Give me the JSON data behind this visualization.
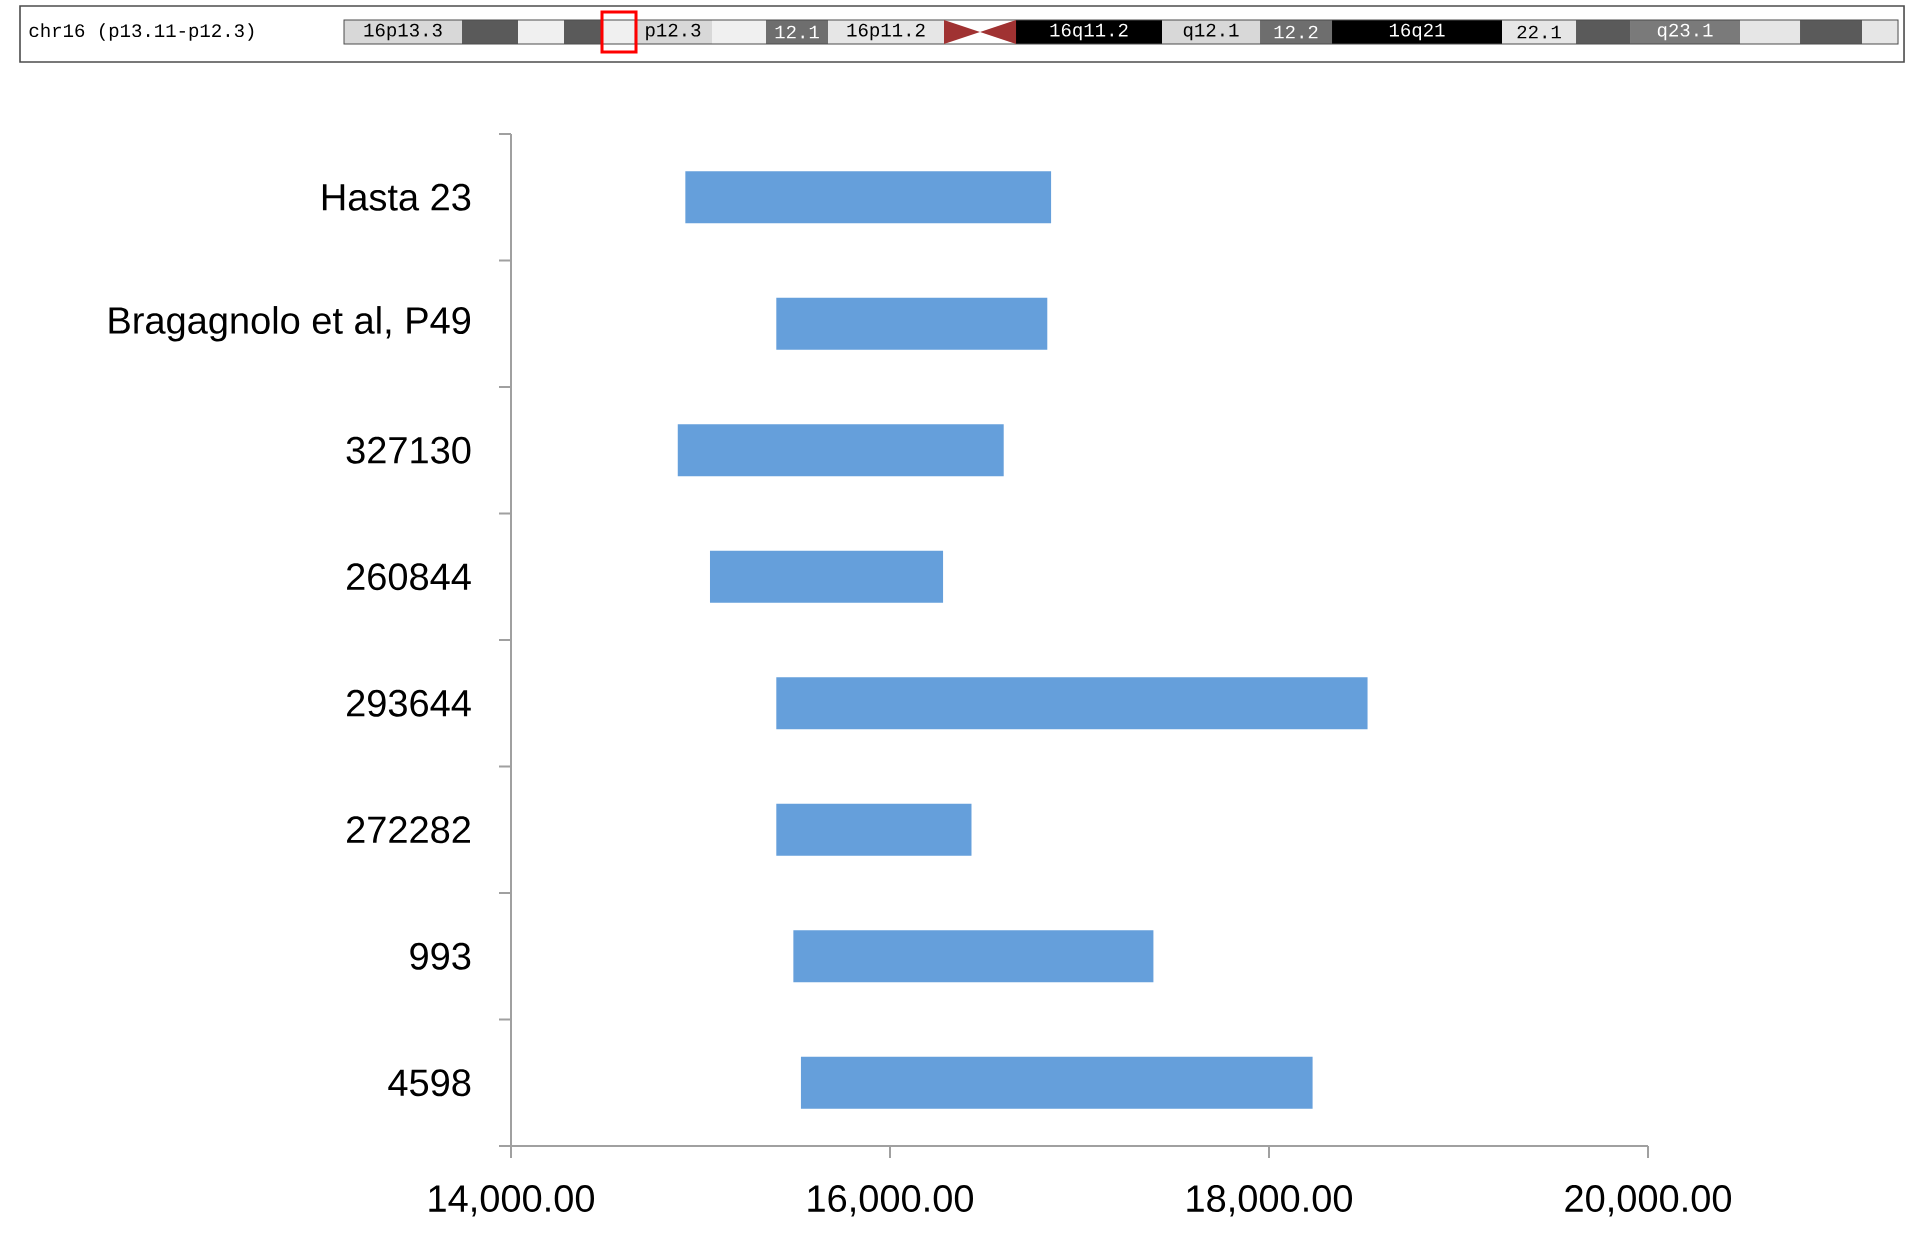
{
  "chart_data": {
    "type": "bar",
    "orientation": "horizontal",
    "categories": [
      "Hasta 23",
      "Bragagnolo et al, P49",
      "327130",
      "260844",
      "293644",
      "272282",
      "993",
      "4598"
    ],
    "series": [
      {
        "color": "#659fdb",
        "base": [
          14920,
          15400,
          14880,
          15050,
          15400,
          15400,
          15490,
          15530
        ],
        "values": [
          1930,
          1430,
          1720,
          1230,
          3120,
          1030,
          1900,
          2700
        ]
      }
    ],
    "xlim": [
      14000,
      20000
    ],
    "xticks": [
      {
        "value": 14000,
        "label": "14,000.00"
      },
      {
        "value": 16000,
        "label": "16,000.00"
      },
      {
        "value": 18000,
        "label": "18,000.00"
      },
      {
        "value": 20000,
        "label": "20,000.00"
      }
    ],
    "grid": false,
    "annotations": [
      "chr16 (p13.11-p12.3)",
      "16p13.3",
      "p12.3",
      "12.1",
      "16p11.2",
      "16q11.2",
      "q12.1",
      "12.2",
      "16q21",
      "22.1",
      "q23.1"
    ]
  }
}
